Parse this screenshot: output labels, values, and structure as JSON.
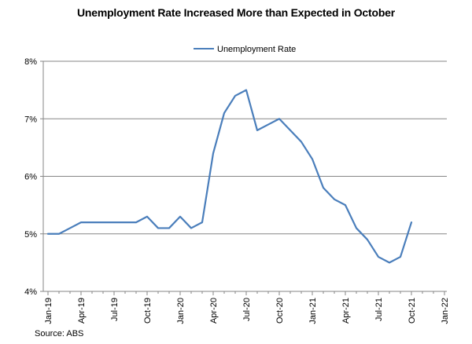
{
  "chart_data": {
    "type": "line",
    "title": "Unemployment Rate Increased More than Expected in October",
    "xlabel": "",
    "ylabel": "",
    "x_tick_labels": [
      "Jan-19",
      "Apr-19",
      "Jul-19",
      "Oct-19",
      "Jan-20",
      "Apr-20",
      "Jul-20",
      "Oct-20",
      "Jan-21",
      "Apr-21",
      "Jul-21",
      "Oct-21",
      "Jan-22"
    ],
    "y_tick_labels": [
      "4%",
      "5%",
      "6%",
      "7%",
      "8%"
    ],
    "ylim": [
      4,
      8
    ],
    "y_unit": "%",
    "grid": true,
    "legend_position": "top-center",
    "series": [
      {
        "name": "Unemployment Rate",
        "color": "#4a7ebb",
        "x": [
          "Jan-19",
          "Feb-19",
          "Mar-19",
          "Apr-19",
          "May-19",
          "Jun-19",
          "Jul-19",
          "Aug-19",
          "Sep-19",
          "Oct-19",
          "Nov-19",
          "Dec-19",
          "Jan-20",
          "Feb-20",
          "Mar-20",
          "Apr-20",
          "May-20",
          "Jun-20",
          "Jul-20",
          "Aug-20",
          "Sep-20",
          "Oct-20",
          "Nov-20",
          "Dec-20",
          "Jan-21",
          "Feb-21",
          "Mar-21",
          "Apr-21",
          "May-21",
          "Jun-21",
          "Jul-21",
          "Aug-21",
          "Sep-21",
          "Oct-21"
        ],
        "values": [
          5.0,
          5.0,
          5.1,
          5.2,
          5.2,
          5.2,
          5.2,
          5.2,
          5.2,
          5.3,
          5.1,
          5.1,
          5.3,
          5.1,
          5.2,
          6.4,
          7.1,
          7.4,
          7.5,
          6.8,
          6.9,
          7.0,
          6.8,
          6.6,
          6.3,
          5.8,
          5.6,
          5.5,
          5.1,
          4.9,
          4.6,
          4.5,
          4.6,
          5.2
        ]
      }
    ],
    "source": "Source: ABS"
  }
}
